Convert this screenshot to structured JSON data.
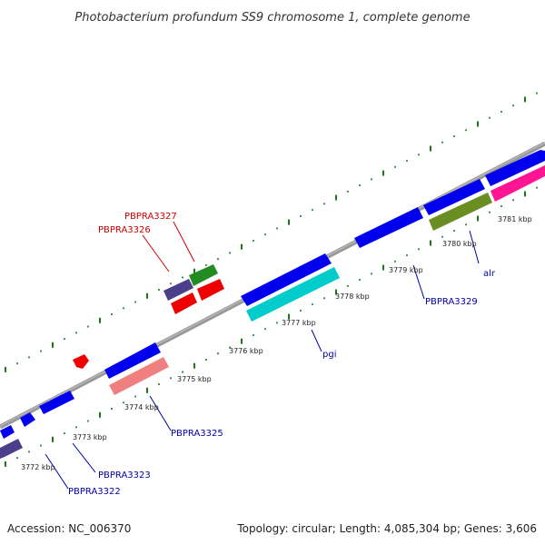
{
  "title": "Photobacterium profundum SS9 chromosome 1, complete genome",
  "footer": {
    "accession": "Accession: NC_006370",
    "summary": "Topology: circular; Length: 4,085,304 bp; Genes: 3,606"
  },
  "colors": {
    "backbone": "#888888",
    "ticks": "#1a7a1a",
    "label_blue": "#0000aa",
    "label_red": "#cc0000"
  },
  "tick_labels": [
    "3772 kbp",
    "3773 kbp",
    "3774 kbp",
    "3775 kbp",
    "3776 kbp",
    "3777 kbp",
    "3778 kbp",
    "3779 kbp",
    "3780 kbp",
    "3781 kbp"
  ],
  "gene_labels": [
    "PBPRA3322",
    "PBPRA3323",
    "PBPRA3325",
    "pgi",
    "PBPRA3329",
    "alr",
    "PBPRA3326",
    "PBPRA3327"
  ]
}
